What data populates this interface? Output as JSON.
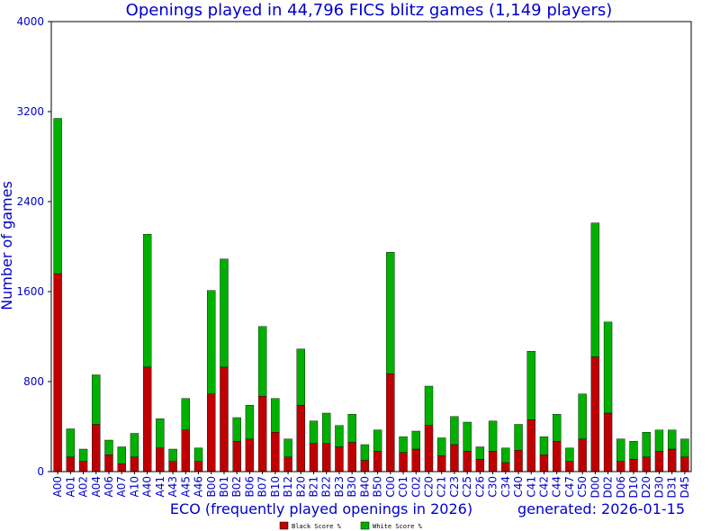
{
  "chart_data": {
    "type": "bar",
    "stacked": true,
    "title": "Openings played in 44,796 FICS blitz games (1,149 players)",
    "xlabel": "ECO (frequently played openings in 2026)",
    "ylabel": "Number of games",
    "footer_note": "generated: 2026-01-15",
    "ylim": [
      0,
      4000
    ],
    "yticks": [
      0,
      800,
      1600,
      2400,
      3200,
      4000
    ],
    "grid": false,
    "legend_position": "bottom-center",
    "colors": {
      "black": "#c00000",
      "white": "#00b000",
      "text": "#0000cc",
      "axis": "#000000"
    },
    "categories": [
      "A00",
      "A01",
      "A02",
      "A04",
      "A06",
      "A07",
      "A10",
      "A40",
      "A41",
      "A43",
      "A45",
      "A46",
      "B00",
      "B01",
      "B02",
      "B06",
      "B07",
      "B10",
      "B12",
      "B20",
      "B21",
      "B22",
      "B23",
      "B30",
      "B40",
      "B50",
      "C00",
      "C01",
      "C02",
      "C20",
      "C21",
      "C23",
      "C25",
      "C26",
      "C30",
      "C34",
      "C40",
      "C41",
      "C42",
      "C44",
      "C47",
      "C50",
      "D00",
      "D02",
      "D06",
      "D10",
      "D20",
      "D30",
      "D31",
      "D45"
    ],
    "series": [
      {
        "name": "Black Score %",
        "values": [
          1760,
          130,
          90,
          420,
          150,
          70,
          130,
          930,
          210,
          90,
          370,
          90,
          690,
          930,
          270,
          290,
          670,
          350,
          130,
          590,
          250,
          250,
          220,
          260,
          100,
          180,
          870,
          170,
          200,
          410,
          140,
          240,
          180,
          110,
          180,
          80,
          190,
          460,
          150,
          270,
          90,
          290,
          1020,
          520,
          90,
          110,
          130,
          180,
          200,
          130
        ]
      },
      {
        "name": "White Score %",
        "values": [
          1380,
          250,
          110,
          440,
          130,
          150,
          210,
          1180,
          260,
          110,
          280,
          120,
          920,
          960,
          210,
          300,
          620,
          300,
          160,
          500,
          200,
          270,
          190,
          250,
          140,
          190,
          1080,
          140,
          160,
          350,
          160,
          250,
          260,
          110,
          270,
          130,
          230,
          610,
          160,
          240,
          120,
          400,
          1190,
          810,
          200,
          160,
          220,
          190,
          170,
          160
        ]
      }
    ]
  }
}
